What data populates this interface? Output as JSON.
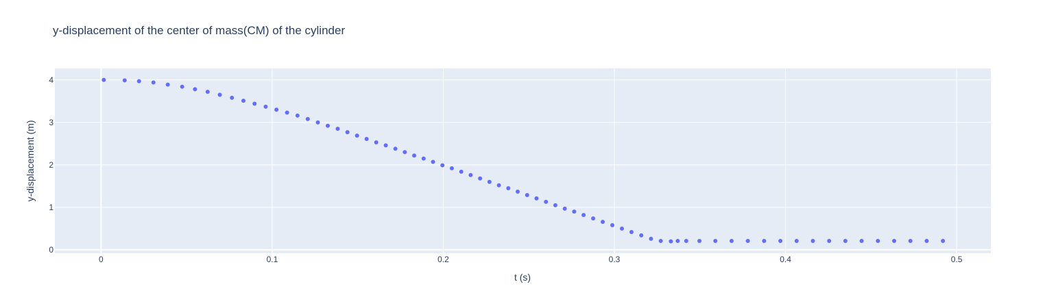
{
  "chart_data": {
    "type": "scatter",
    "title": "y-displacement of the center of mass(CM) of the cylinder",
    "xlabel": "t (s)",
    "ylabel": "y-displacement (m)",
    "xlim": [
      -0.027,
      0.52
    ],
    "ylim": [
      -0.08,
      4.27
    ],
    "xticks": [
      0,
      0.1,
      0.2,
      0.3,
      0.4,
      0.5
    ],
    "xtick_labels": [
      "0",
      "0.1",
      "0.2",
      "0.3",
      "0.4",
      "0.5"
    ],
    "yticks": [
      0,
      1,
      2,
      3,
      4
    ],
    "ytick_labels": [
      "0",
      "1",
      "2",
      "3",
      "4"
    ],
    "grid": true,
    "colors": {
      "marker": "#636efa",
      "plot_bg": "#e5ecf6",
      "grid": "#ffffff",
      "text": "#2a3f5f"
    },
    "series": [
      {
        "x": [
          0.0016,
          0.0138,
          0.0222,
          0.0306,
          0.039,
          0.0474,
          0.0549,
          0.0623,
          0.0694,
          0.0765,
          0.0832,
          0.0897,
          0.0962,
          0.1025,
          0.1087,
          0.1148,
          0.1208,
          0.1267,
          0.1325,
          0.1383,
          0.144,
          0.1496,
          0.1552,
          0.1608,
          0.1664,
          0.172,
          0.1775,
          0.183,
          0.1885,
          0.194,
          0.1995,
          0.205,
          0.2105,
          0.216,
          0.2215,
          0.227,
          0.2325,
          0.238,
          0.2435,
          0.249,
          0.2545,
          0.26,
          0.2655,
          0.271,
          0.2765,
          0.282,
          0.2876,
          0.2932,
          0.2988,
          0.3044,
          0.31,
          0.3157,
          0.3214,
          0.3271,
          0.333,
          0.337,
          0.342,
          0.3497,
          0.359,
          0.3685,
          0.378,
          0.3875,
          0.397,
          0.4065,
          0.416,
          0.4255,
          0.435,
          0.4445,
          0.454,
          0.4635,
          0.473,
          0.4825,
          0.492
        ],
        "y": [
          4.0,
          3.99,
          3.97,
          3.94,
          3.89,
          3.84,
          3.78,
          3.72,
          3.65,
          3.58,
          3.51,
          3.44,
          3.37,
          3.3,
          3.23,
          3.16,
          3.08,
          3.0,
          2.92,
          2.85,
          2.77,
          2.69,
          2.61,
          2.53,
          2.46,
          2.38,
          2.3,
          2.22,
          2.15,
          2.07,
          1.99,
          1.92,
          1.84,
          1.76,
          1.68,
          1.6,
          1.52,
          1.45,
          1.37,
          1.29,
          1.21,
          1.13,
          1.05,
          0.97,
          0.9,
          0.82,
          0.74,
          0.66,
          0.58,
          0.5,
          0.42,
          0.34,
          0.26,
          0.21,
          0.2,
          0.21,
          0.21,
          0.21,
          0.21,
          0.21,
          0.21,
          0.21,
          0.21,
          0.21,
          0.21,
          0.21,
          0.21,
          0.21,
          0.21,
          0.21,
          0.21,
          0.21,
          0.21
        ]
      }
    ]
  }
}
